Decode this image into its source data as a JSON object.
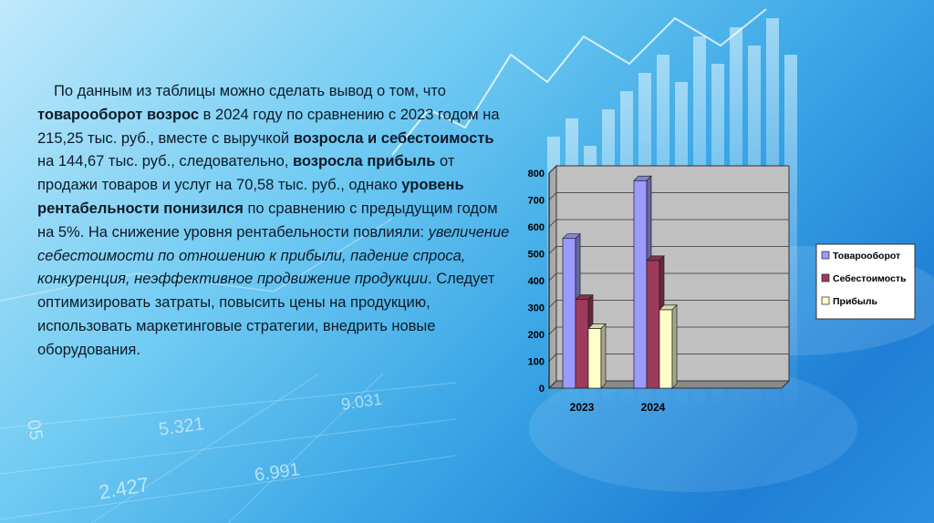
{
  "slide": {
    "paragraph": [
      {
        "t": "По данным из таблицы можно сделать вывод о том, что ",
        "s": "normal"
      },
      {
        "t": "товарооборот возрос",
        "s": "bold"
      },
      {
        "t": " в 2024 году по сравнению с 2023 годом на 215,25 тыс. руб., вместе с выручкой ",
        "s": "normal"
      },
      {
        "t": "возросла и себестоимость",
        "s": "bold"
      },
      {
        "t": " на 144,67 тыс. руб., следовательно, ",
        "s": "normal"
      },
      {
        "t": "возросла прибыль",
        "s": "bold"
      },
      {
        "t": " от продажи товаров и услуг на 70,58 тыс. руб., однако ",
        "s": "normal"
      },
      {
        "t": "уровень рентабельности понизился",
        "s": "bold"
      },
      {
        "t": " по сравнению с предыдущим годом на 5%. На снижение уровня рентабельности повлияли: ",
        "s": "normal"
      },
      {
        "t": "увеличение себестоимости по отношению к прибыли, падение спроса, конкуренция, неэффективное продвижение продукции",
        "s": "italic"
      },
      {
        "t": ". Следует оптимизировать затраты, повысить цены на продукцию, использовать маркетинговые стратегии, внедрить новые оборудования.",
        "s": "normal"
      }
    ],
    "background_numbers": [
      "5.321",
      "9.031",
      "2.427",
      "6.991",
      "05"
    ]
  },
  "chart_data": {
    "type": "bar",
    "categories": [
      "2023",
      "2024"
    ],
    "series": [
      {
        "name": "Товарооборот",
        "values": [
          557,
          772
        ],
        "color": "#9b9bff"
      },
      {
        "name": "Себестоимость",
        "values": [
          330,
          475
        ],
        "color": "#9e3a5c"
      },
      {
        "name": "Прибыль",
        "values": [
          222,
          292
        ],
        "color": "#ffffcc"
      }
    ],
    "ylim": [
      0,
      800
    ],
    "yticks": [
      0,
      100,
      200,
      300,
      400,
      500,
      600,
      700,
      800
    ],
    "grid": true,
    "legend": "right"
  }
}
